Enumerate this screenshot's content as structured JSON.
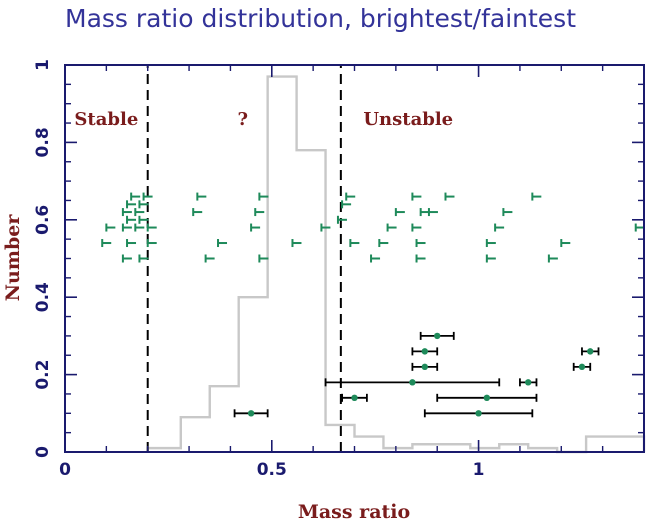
{
  "chart_data": {
    "type": "scatter",
    "title": "Mass ratio distribution, brightest/faintest",
    "xlabel": "Mass ratio",
    "ylabel": "Number",
    "xlim": [
      0,
      1.4
    ],
    "ylim": [
      0,
      1
    ],
    "x_ticks": [
      {
        "value": 0,
        "label": "0"
      },
      {
        "value": 0.5,
        "label": "0.5"
      },
      {
        "value": 1,
        "label": "1"
      }
    ],
    "y_ticks": [
      {
        "value": 0,
        "label": "0"
      },
      {
        "value": 0.2,
        "label": "0.2"
      },
      {
        "value": 0.4,
        "label": "0.4"
      },
      {
        "value": 0.6,
        "label": "0.6"
      },
      {
        "value": 0.8,
        "label": "0.8"
      },
      {
        "value": 1,
        "label": "1"
      }
    ],
    "grid": false,
    "legend": "none",
    "region_boundaries": [
      0.2,
      0.667
    ],
    "region_labels": [
      {
        "text": "Stable",
        "x": 0.1,
        "y": 0.86
      },
      {
        "text": "?",
        "x": 0.43,
        "y": 0.86
      },
      {
        "text": "Unstable",
        "x": 0.83,
        "y": 0.86
      }
    ],
    "histogram": {
      "edges": [
        0.2,
        0.28,
        0.35,
        0.42,
        0.49,
        0.56,
        0.63,
        0.7,
        0.77,
        0.84,
        0.91,
        0.98,
        1.05,
        1.12,
        1.19,
        1.26,
        1.33,
        1.4
      ],
      "values": [
        0.01,
        0.09,
        0.17,
        0.4,
        0.97,
        0.78,
        0.07,
        0.04,
        0.01,
        0.02,
        0.02,
        0.01,
        0.02,
        0.01,
        0.0,
        0.04,
        0.04
      ]
    },
    "lower_limits": [
      {
        "x": 0.16,
        "y": 0.66
      },
      {
        "x": 0.19,
        "y": 0.66
      },
      {
        "x": 0.15,
        "y": 0.64
      },
      {
        "x": 0.18,
        "y": 0.64
      },
      {
        "x": 0.14,
        "y": 0.62
      },
      {
        "x": 0.17,
        "y": 0.62
      },
      {
        "x": 0.15,
        "y": 0.6
      },
      {
        "x": 0.18,
        "y": 0.6
      },
      {
        "x": 0.1,
        "y": 0.58
      },
      {
        "x": 0.14,
        "y": 0.58
      },
      {
        "x": 0.17,
        "y": 0.58
      },
      {
        "x": 0.2,
        "y": 0.58
      },
      {
        "x": 0.09,
        "y": 0.54
      },
      {
        "x": 0.15,
        "y": 0.54
      },
      {
        "x": 0.2,
        "y": 0.54
      },
      {
        "x": 0.14,
        "y": 0.5
      },
      {
        "x": 0.18,
        "y": 0.5
      },
      {
        "x": 0.32,
        "y": 0.66
      },
      {
        "x": 0.31,
        "y": 0.62
      },
      {
        "x": 0.47,
        "y": 0.66
      },
      {
        "x": 0.46,
        "y": 0.62
      },
      {
        "x": 0.45,
        "y": 0.58
      },
      {
        "x": 0.37,
        "y": 0.54
      },
      {
        "x": 0.34,
        "y": 0.5
      },
      {
        "x": 0.47,
        "y": 0.5
      },
      {
        "x": 0.55,
        "y": 0.54
      },
      {
        "x": 0.62,
        "y": 0.58
      },
      {
        "x": 0.68,
        "y": 0.66
      },
      {
        "x": 0.67,
        "y": 0.64
      },
      {
        "x": 0.66,
        "y": 0.6
      },
      {
        "x": 0.69,
        "y": 0.54
      },
      {
        "x": 0.84,
        "y": 0.66
      },
      {
        "x": 0.8,
        "y": 0.62
      },
      {
        "x": 0.86,
        "y": 0.62
      },
      {
        "x": 0.78,
        "y": 0.58
      },
      {
        "x": 0.84,
        "y": 0.58
      },
      {
        "x": 0.76,
        "y": 0.54
      },
      {
        "x": 0.74,
        "y": 0.5
      },
      {
        "x": 0.85,
        "y": 0.5
      },
      {
        "x": 0.92,
        "y": 0.66
      },
      {
        "x": 0.88,
        "y": 0.62
      },
      {
        "x": 0.85,
        "y": 0.54
      },
      {
        "x": 1.06,
        "y": 0.62
      },
      {
        "x": 1.04,
        "y": 0.58
      },
      {
        "x": 1.02,
        "y": 0.54
      },
      {
        "x": 1.02,
        "y": 0.5
      },
      {
        "x": 1.13,
        "y": 0.66
      },
      {
        "x": 1.2,
        "y": 0.54
      },
      {
        "x": 1.17,
        "y": 0.5
      },
      {
        "x": 1.38,
        "y": 0.58
      }
    ],
    "measurements": [
      {
        "x": 0.45,
        "xerr": 0.04,
        "y": 0.1
      },
      {
        "x": 0.9,
        "xerr": 0.04,
        "y": 0.3
      },
      {
        "x": 0.87,
        "xerr": 0.03,
        "y": 0.26
      },
      {
        "x": 0.87,
        "xerr": 0.03,
        "y": 0.22
      },
      {
        "x": 0.84,
        "xerr": 0.21,
        "y": 0.18
      },
      {
        "x": 0.7,
        "xerr": 0.03,
        "y": 0.14
      },
      {
        "x": 1.02,
        "xerr": 0.12,
        "y": 0.14
      },
      {
        "x": 1.0,
        "xerr": 0.13,
        "y": 0.1
      },
      {
        "x": 1.12,
        "xerr": 0.02,
        "y": 0.18
      },
      {
        "x": 1.27,
        "xerr": 0.02,
        "y": 0.26
      },
      {
        "x": 1.25,
        "xerr": 0.02,
        "y": 0.22
      }
    ],
    "colors": {
      "axis": "#1a1a6e",
      "title": "#333399",
      "label": "#7a1c1c",
      "marker": "#1e8a5a",
      "errorbar": "#000000",
      "histogram": "#c8c8c8",
      "boundary": "#000000"
    }
  }
}
